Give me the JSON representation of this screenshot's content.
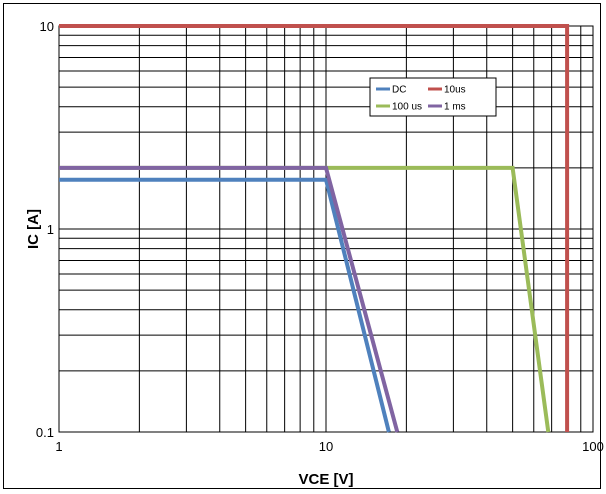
{
  "chart_data": {
    "type": "line",
    "title": "",
    "xlabel": "VCE [V]",
    "ylabel": "IC [A]",
    "xscale": "log",
    "yscale": "log",
    "xlim": [
      1,
      100
    ],
    "ylim": [
      0.1,
      10
    ],
    "x_ticks": [
      1,
      10,
      100
    ],
    "x_tick_labels": [
      "1",
      "10",
      "100"
    ],
    "y_ticks": [
      0.1,
      1,
      10
    ],
    "y_tick_labels": [
      "0.1",
      "1",
      "10"
    ],
    "grid": true,
    "legend": "top-right",
    "series": [
      {
        "name": "DC",
        "color": "#4f81bd",
        "points": [
          [
            1,
            1.75
          ],
          [
            10,
            1.75
          ],
          [
            17.2,
            0.1
          ]
        ]
      },
      {
        "name": "10us",
        "color": "#c0504d",
        "points": [
          [
            1,
            10
          ],
          [
            80,
            10
          ],
          [
            80,
            0.1
          ]
        ]
      },
      {
        "name": "100 us",
        "color": "#9bbb59",
        "points": [
          [
            1,
            2
          ],
          [
            50,
            2
          ],
          [
            68,
            0.1
          ]
        ]
      },
      {
        "name": "1 ms",
        "color": "#8064a2",
        "points": [
          [
            1,
            2
          ],
          [
            10,
            2
          ],
          [
            18.5,
            0.1
          ]
        ]
      }
    ]
  }
}
